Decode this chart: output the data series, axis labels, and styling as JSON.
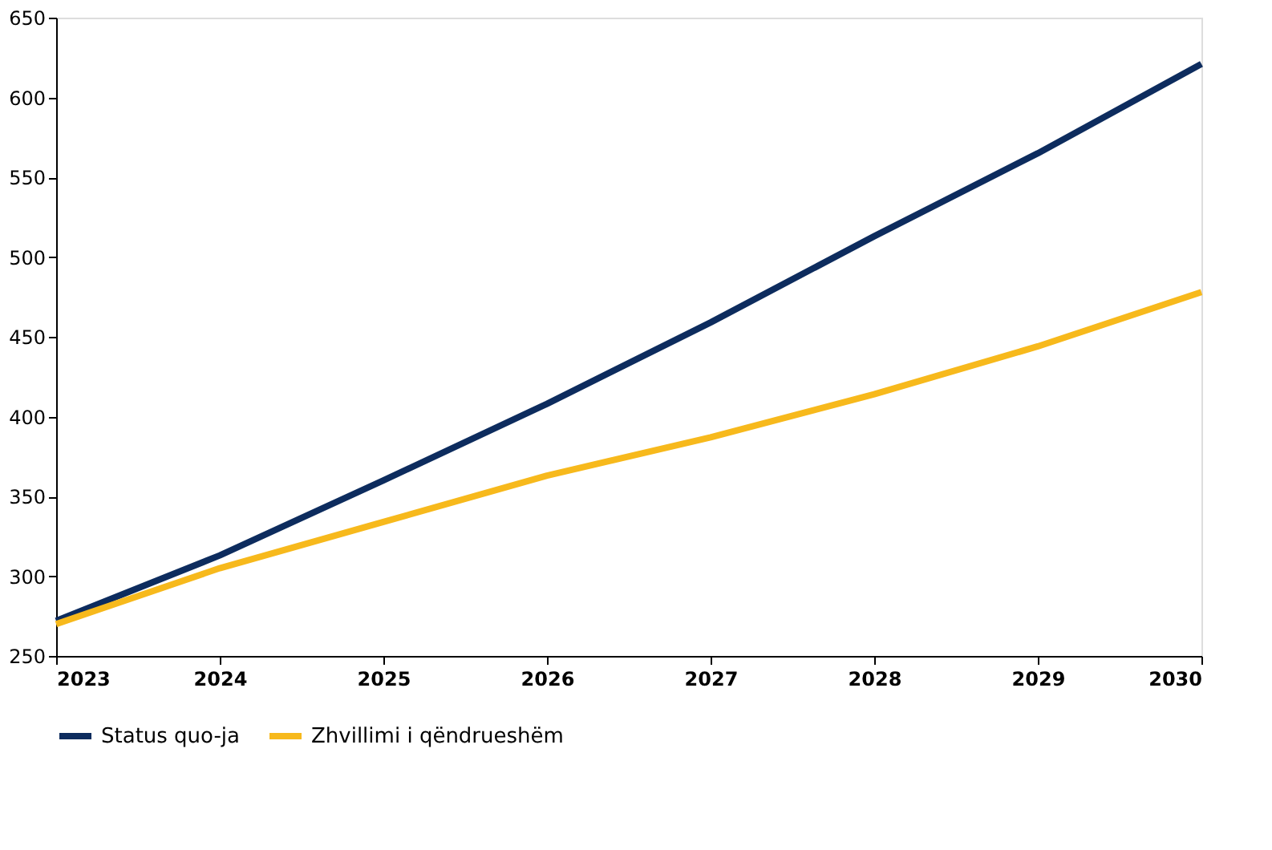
{
  "chart_data": {
    "type": "line",
    "x": [
      2023,
      2024,
      2025,
      2026,
      2027,
      2028,
      2029,
      2030
    ],
    "series": [
      {
        "name": "Status quo-ja",
        "color": "#0d2c5e",
        "values": [
          272,
          313,
          360,
          408,
          459,
          513,
          565,
          621
        ]
      },
      {
        "name": "Zhvillimi i qëndrueshëm",
        "color": "#f7b91c",
        "values": [
          270,
          305,
          334,
          363,
          387,
          414,
          444,
          478
        ]
      }
    ],
    "xlim": [
      2023,
      2030
    ],
    "xticks": [
      2023,
      2024,
      2025,
      2026,
      2027,
      2028,
      2029,
      2030
    ],
    "ylim": [
      250,
      650
    ],
    "yticks": [
      250,
      300,
      350,
      400,
      450,
      500,
      550,
      600,
      650
    ],
    "grid": false,
    "legend": "bottom",
    "marker": "none",
    "line_style": "solid"
  }
}
